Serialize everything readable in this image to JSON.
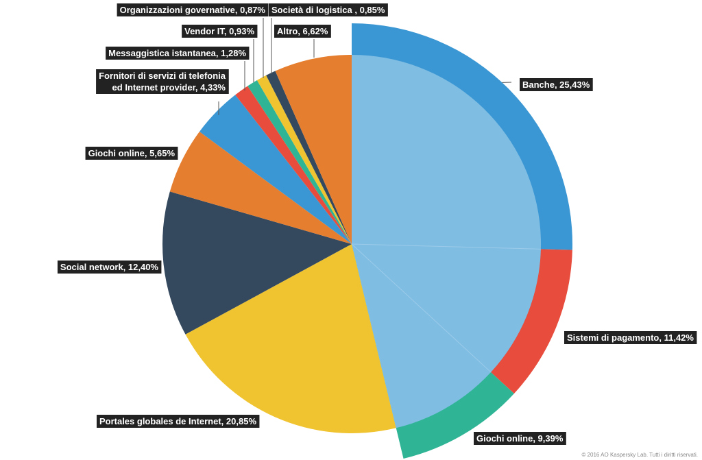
{
  "chart_data": {
    "type": "pie",
    "title": "",
    "slices": [
      {
        "label": "Banche, 25,43%",
        "name": "Banche",
        "value": 25.43,
        "color": "#3b97d3",
        "inner": true
      },
      {
        "label": "Sistemi di pagamento, 11,42%",
        "name": "Sistemi di pagamento",
        "value": 11.42,
        "color": "#e74c3c",
        "inner": true
      },
      {
        "label": "Giochi online, 9,39%",
        "name": "Giochi online",
        "value": 9.39,
        "color": "#2fb595",
        "inner": true
      },
      {
        "label": "Portales globales de Internet, 20,85%",
        "name": "Portales globales de Internet",
        "value": 20.85,
        "color": "#f0c330",
        "inner": false
      },
      {
        "label": "Social network, 12,40%",
        "name": "Social network",
        "value": 12.4,
        "color": "#34495e",
        "inner": false
      },
      {
        "label": "Giochi online, 5,65%",
        "name": "Giochi online",
        "value": 5.65,
        "color": "#e67e2f",
        "inner": false
      },
      {
        "label": "Fornitori di servizi di telefonia\ned Internet provider, 4,33%",
        "name": "Fornitori di servizi di telefonia ed Internet provider",
        "value": 4.33,
        "color": "#3b97d3",
        "inner": false
      },
      {
        "label": "Messaggistica istantanea, 1,28%",
        "name": "Messaggistica istantanea",
        "value": 1.28,
        "color": "#e74c3c",
        "inner": false
      },
      {
        "label": "Vendor IT, 0,93%",
        "name": "Vendor IT",
        "value": 0.93,
        "color": "#2fb595",
        "inner": false
      },
      {
        "label": "Organizzazioni governative, 0,87%",
        "name": "Organizzazioni governative",
        "value": 0.87,
        "color": "#f0c330",
        "inner": false
      },
      {
        "label": "Società di logistica , 0,85%",
        "name": "Società di logistica",
        "value": 0.85,
        "color": "#34495e",
        "inner": false
      },
      {
        "label": "Altro, 6,62%",
        "name": "Altro",
        "value": 6.62,
        "color": "#e67e2f",
        "inner": false
      }
    ],
    "financial_group_color": "#7fbde3",
    "legend": "none"
  },
  "copyright": "© 2016 AO Kaspersky Lab. Tutti i diritti riservati."
}
